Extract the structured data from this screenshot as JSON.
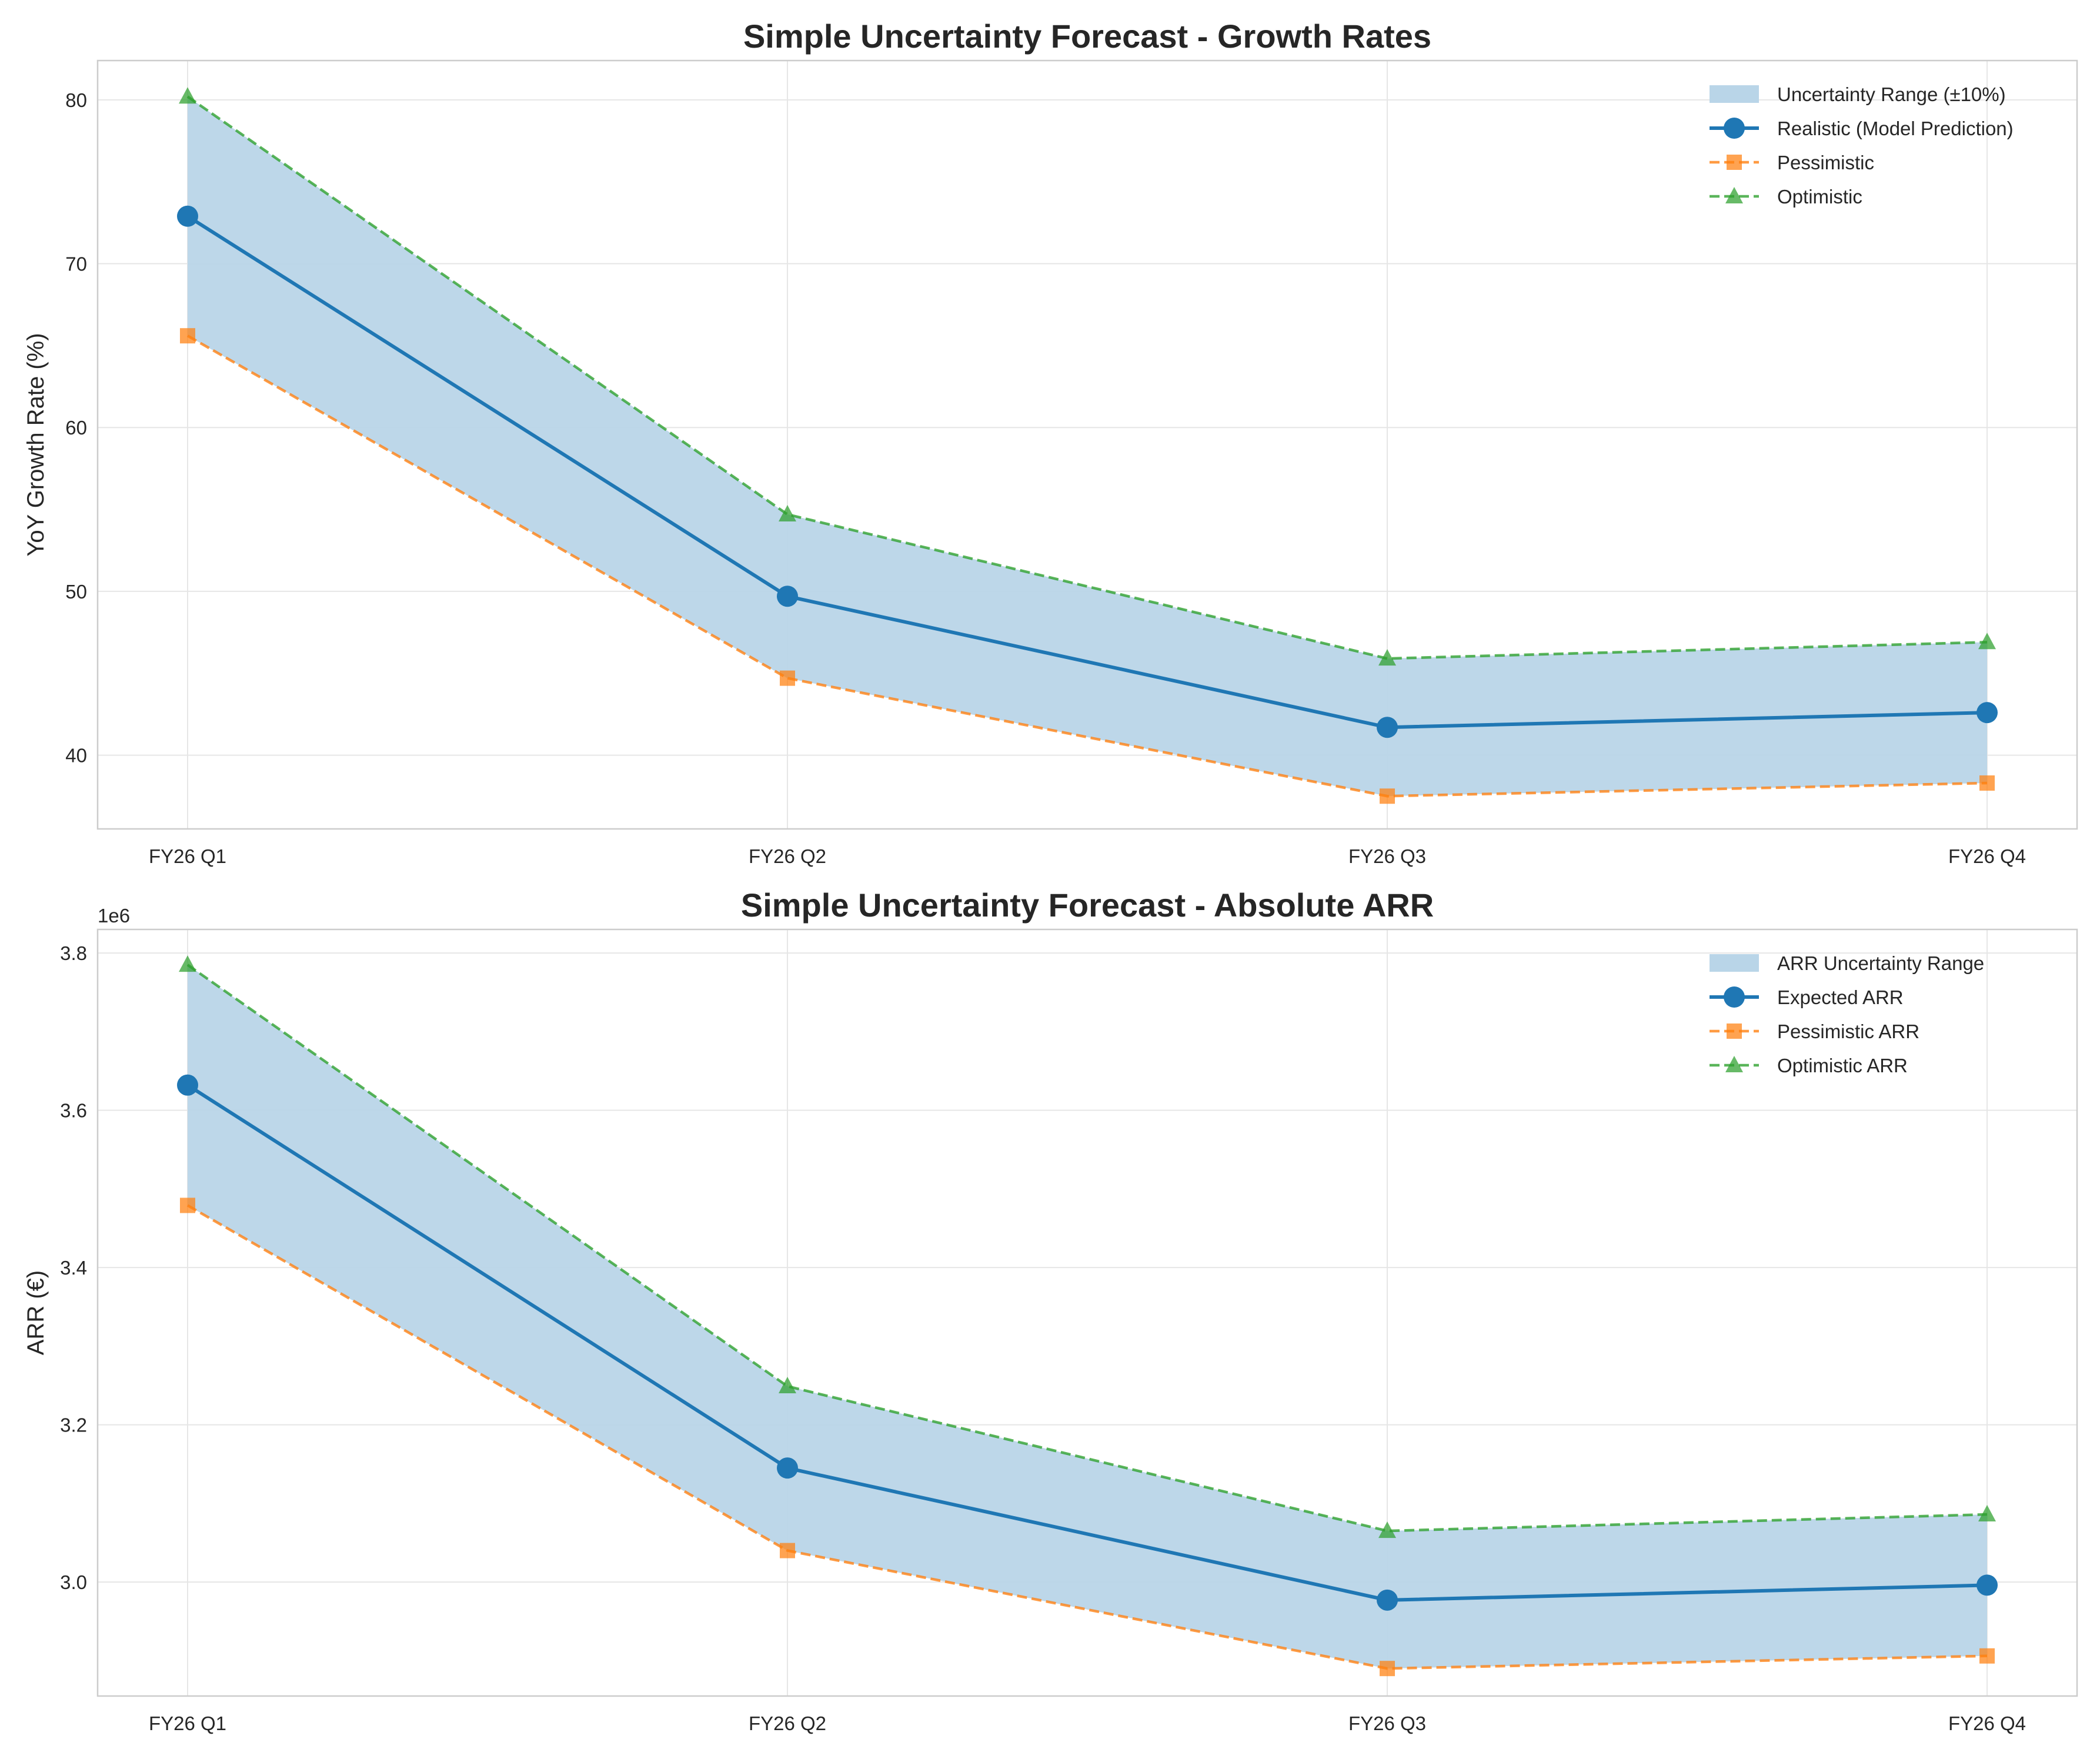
{
  "chart_data": [
    {
      "type": "line",
      "title": "Simple Uncertainty Forecast - Growth Rates",
      "xlabel": "",
      "ylabel": "YoY Growth Rate (%)",
      "categories": [
        "FY26 Q1",
        "FY26 Q2",
        "FY26 Q3",
        "FY26 Q4"
      ],
      "ylim": [
        35.5,
        82.4
      ],
      "yticks": [
        40,
        50,
        60,
        70,
        80
      ],
      "ytick_labels": [
        "40",
        "50",
        "60",
        "70",
        "80"
      ],
      "offset_label": "",
      "grid": true,
      "legend_position": "upper right",
      "band": {
        "name": "Uncertainty Range (±10%)",
        "color": "#b9d5e8",
        "lower_series": "Pessimistic",
        "upper_series": "Optimistic"
      },
      "series": [
        {
          "name": "Realistic (Model Prediction)",
          "values": [
            72.9,
            49.7,
            41.7,
            42.6
          ],
          "color": "#1f77b4",
          "style": "solid",
          "marker": "circle"
        },
        {
          "name": "Pessimistic",
          "values": [
            65.6,
            44.7,
            37.5,
            38.3
          ],
          "color": "#ff7f0e",
          "style": "dashed",
          "marker": "square"
        },
        {
          "name": "Optimistic",
          "values": [
            80.2,
            54.7,
            45.9,
            46.9
          ],
          "color": "#2ca02c",
          "style": "dashed",
          "marker": "triangle"
        }
      ]
    },
    {
      "type": "line",
      "title": "Simple Uncertainty Forecast - Absolute ARR",
      "xlabel": "",
      "ylabel": "ARR (€)",
      "categories": [
        "FY26 Q1",
        "FY26 Q2",
        "FY26 Q3",
        "FY26 Q4"
      ],
      "ylim": [
        2855000,
        3830000
      ],
      "yticks": [
        3000000,
        3200000,
        3400000,
        3600000,
        3800000
      ],
      "ytick_labels": [
        "3.0",
        "3.2",
        "3.4",
        "3.6",
        "3.8"
      ],
      "offset_label": "1e6",
      "grid": true,
      "legend_position": "upper right",
      "band": {
        "name": "ARR Uncertainty Range",
        "color": "#b9d5e8",
        "lower_series": "Pessimistic ARR",
        "upper_series": "Optimistic ARR"
      },
      "series": [
        {
          "name": "Expected ARR",
          "values": [
            3632000,
            3145000,
            2977000,
            2996000
          ],
          "color": "#1f77b4",
          "style": "solid",
          "marker": "circle"
        },
        {
          "name": "Pessimistic ARR",
          "values": [
            3479000,
            3040000,
            2890000,
            2906000
          ],
          "color": "#ff7f0e",
          "style": "dashed",
          "marker": "square"
        },
        {
          "name": "Optimistic ARR",
          "values": [
            3785000,
            3249000,
            3065000,
            3086000
          ],
          "color": "#2ca02c",
          "style": "dashed",
          "marker": "triangle"
        }
      ]
    }
  ]
}
